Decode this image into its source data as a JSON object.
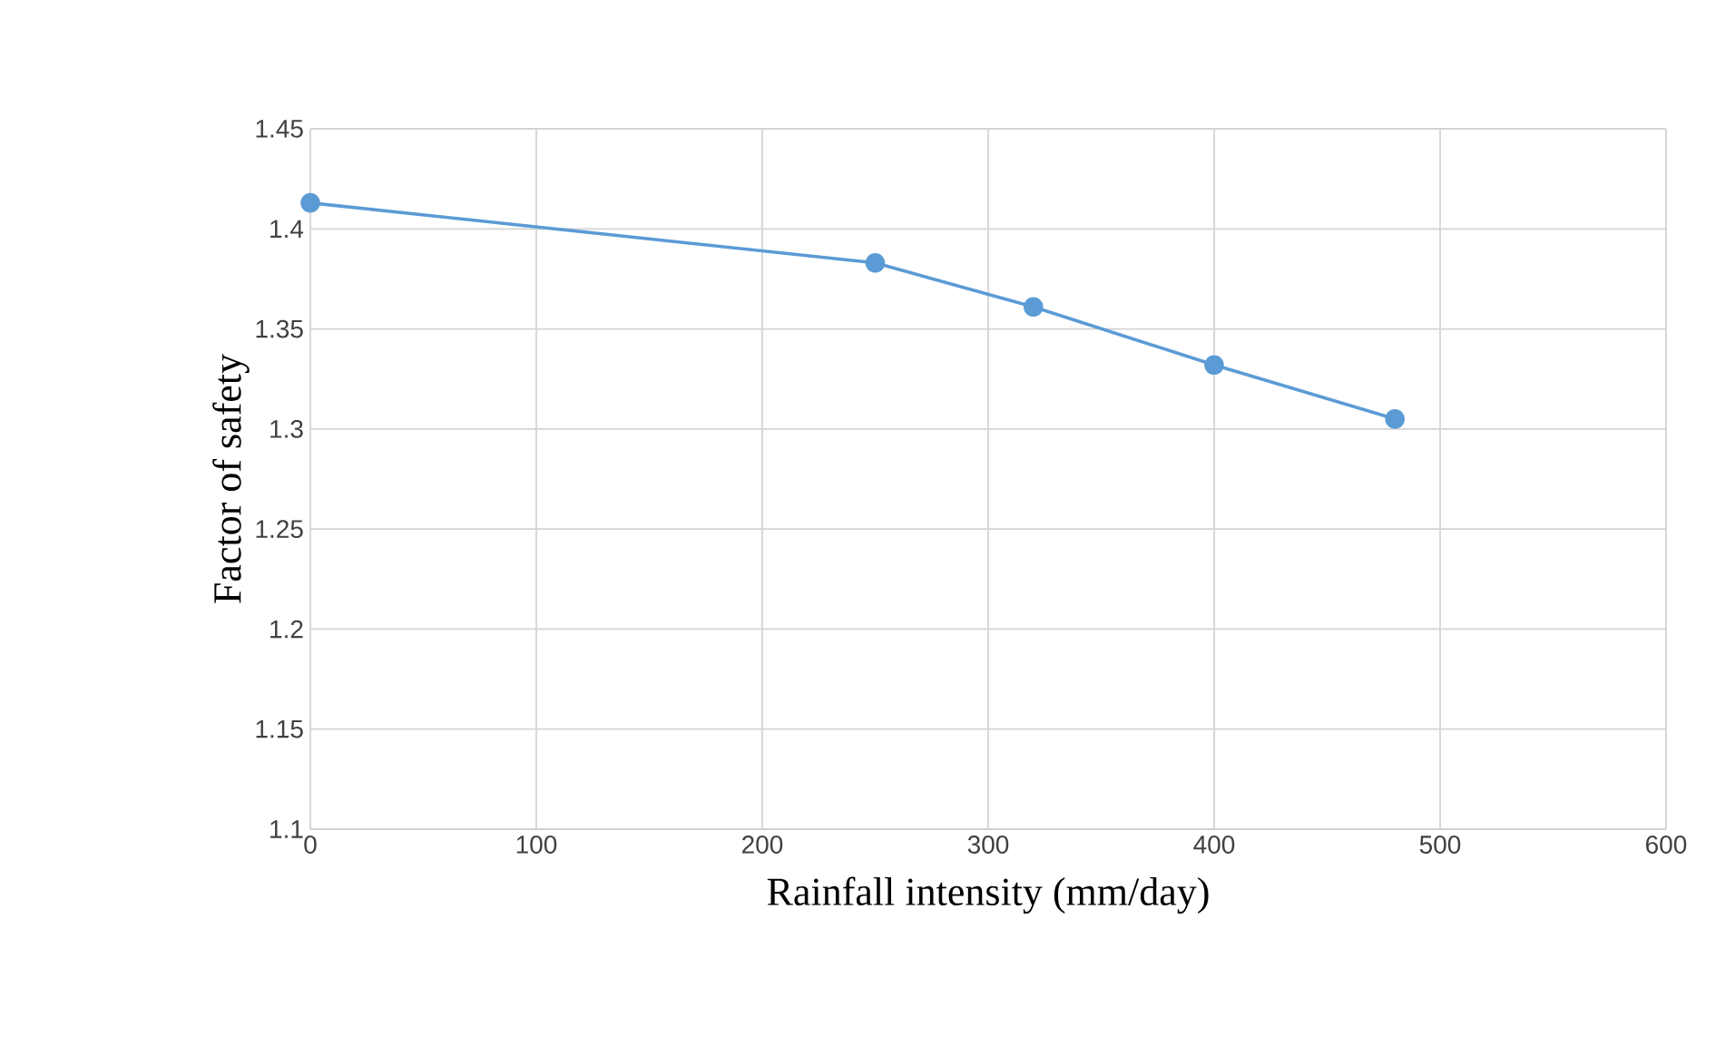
{
  "chart_data": {
    "type": "line",
    "xlabel": "Rainfall intensity (mm/day)",
    "ylabel": "Factor of safety",
    "x": [
      0,
      250,
      320,
      400,
      480
    ],
    "series": [
      {
        "color": "#5b9bd5",
        "values": [
          1.413,
          1.383,
          1.361,
          1.332,
          1.305
        ]
      }
    ],
    "xlim": [
      0,
      600
    ],
    "xticks": [
      0,
      100,
      200,
      300,
      400,
      500,
      600
    ],
    "ylim": [
      1.1,
      1.45
    ],
    "yticks": [
      1.1,
      1.15,
      1.2,
      1.25,
      1.3,
      1.35,
      1.4,
      1.45
    ],
    "grid": true,
    "marker": "circle",
    "line_style": "solid"
  }
}
